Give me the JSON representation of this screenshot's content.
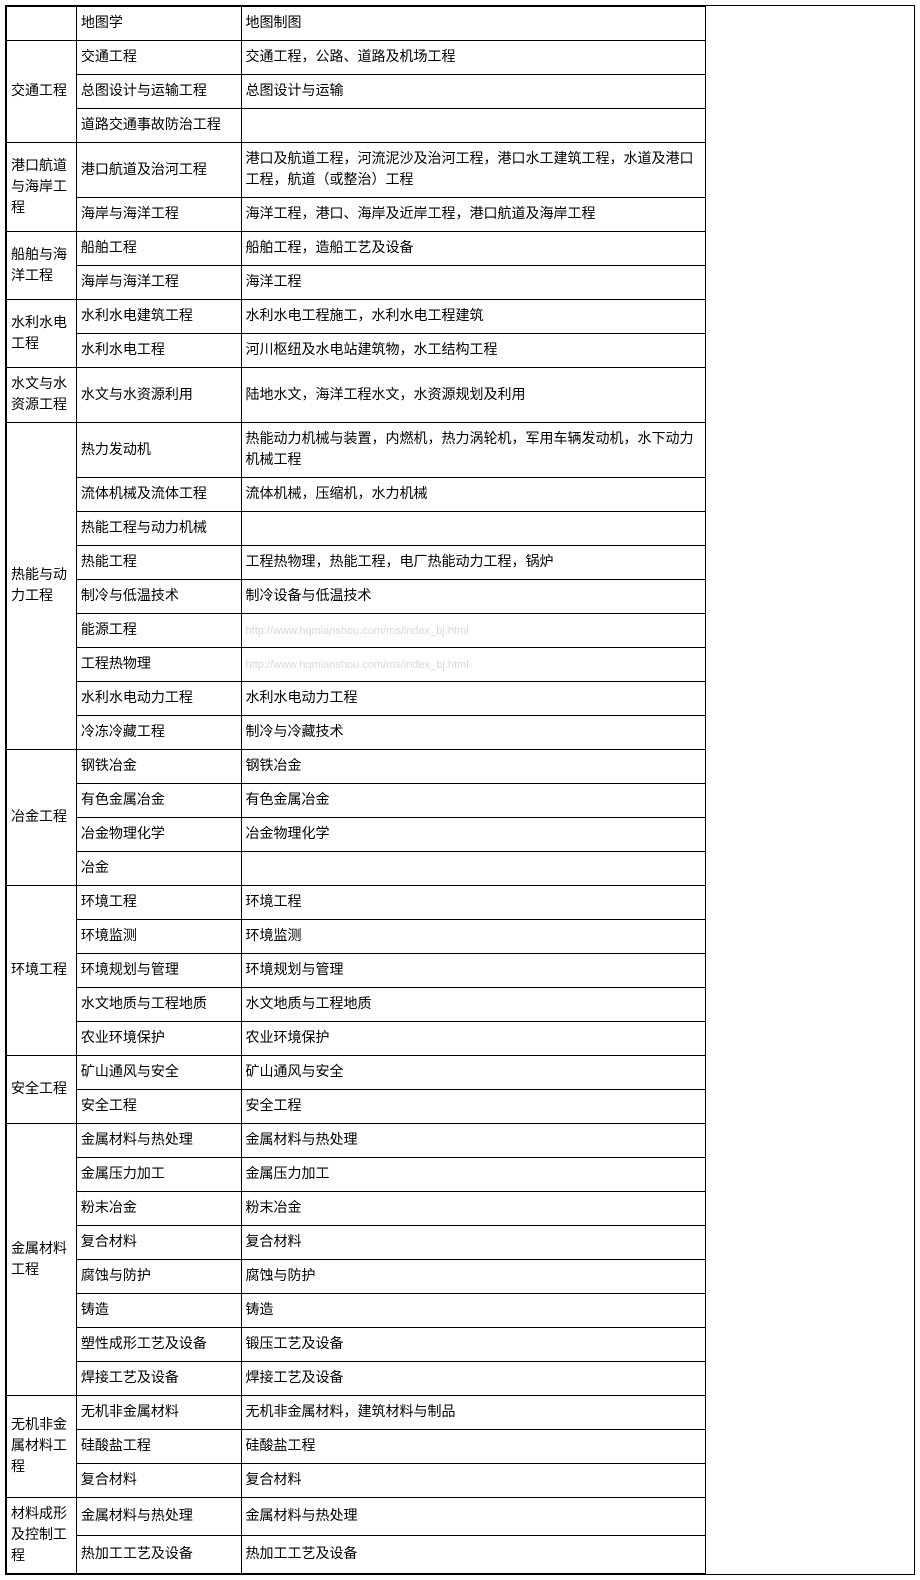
{
  "watermark_text": "http://www.hqmianshou.com/ms/index_bj.html",
  "rows": [
    {
      "c1": "",
      "c2": "地图学",
      "c3": "地图制图"
    },
    {
      "c1": "交通工程",
      "c1_rowspan": 3,
      "c2": "交通工程",
      "c3": "交通工程，公路、道路及机场工程"
    },
    {
      "c2": "总图设计与运输工程",
      "c3": "总图设计与运输"
    },
    {
      "c2": "道路交通事故防治工程",
      "c3": ""
    },
    {
      "c1": "港口航道与海岸工程",
      "c1_rowspan": 2,
      "c2": "港口航道及治河工程",
      "c3": "港口及航道工程，河流泥沙及治河工程，港口水工建筑工程，水道及港口工程，航道（或整治）工程"
    },
    {
      "c2": "海岸与海洋工程",
      "c3": "海洋工程，港口、海岸及近岸工程，港口航道及海岸工程"
    },
    {
      "c1": "船舶与海洋工程",
      "c1_rowspan": 2,
      "c2": "船舶工程",
      "c3": "船舶工程，造船工艺及设备"
    },
    {
      "c2": "海岸与海洋工程",
      "c3": "海洋工程"
    },
    {
      "c1": "水利水电工程",
      "c1_rowspan": 2,
      "c2": "水利水电建筑工程",
      "c3": "水利水电工程施工，水利水电工程建筑"
    },
    {
      "c2": "水利水电工程",
      "c3": "河川枢纽及水电站建筑物，水工结构工程"
    },
    {
      "c1": "水文与水资源工程",
      "c1_rowspan": 1,
      "c2": "水文与水资源利用",
      "c3": "陆地水文，海洋工程水文，水资源规划及利用"
    },
    {
      "c1": "热能与动力工程",
      "c1_rowspan": 9,
      "c2": "热力发动机",
      "c3": "热能动力机械与装置，内燃机，热力涡轮机，军用车辆发动机，水下动力机械工程"
    },
    {
      "c2": "流体机械及流体工程",
      "c3": "流体机械，压缩机，水力机械"
    },
    {
      "c2": "热能工程与动力机械",
      "c3": ""
    },
    {
      "c2": "热能工程",
      "c3": "工程热物理，热能工程，电厂热能动力工程，锅炉"
    },
    {
      "c2": "制冷与低温技术",
      "c3": "制冷设备与低温技术"
    },
    {
      "c2": "能源工程",
      "c3": "",
      "watermark": true
    },
    {
      "c2": "工程热物理",
      "c3": "",
      "watermark": true
    },
    {
      "c2": "水利水电动力工程",
      "c3": "水利水电动力工程"
    },
    {
      "c2": "冷冻冷藏工程",
      "c3": "制冷与冷藏技术"
    },
    {
      "c1": "冶金工程",
      "c1_rowspan": 4,
      "c2": "钢铁冶金",
      "c3": "钢铁冶金"
    },
    {
      "c2": "有色金属冶金",
      "c3": "有色金属冶金"
    },
    {
      "c2": "冶金物理化学",
      "c3": "冶金物理化学"
    },
    {
      "c2": "冶金",
      "c3": ""
    },
    {
      "c1": "环境工程",
      "c1_rowspan": 5,
      "c2": "环境工程",
      "c3": "环境工程"
    },
    {
      "c2": "环境监测",
      "c3": "环境监测"
    },
    {
      "c2": "环境规划与管理",
      "c3": "环境规划与管理"
    },
    {
      "c2": "水文地质与工程地质",
      "c3": "水文地质与工程地质"
    },
    {
      "c2": "农业环境保护",
      "c3": "农业环境保护"
    },
    {
      "c1": "安全工程",
      "c1_rowspan": 2,
      "c2": "矿山通风与安全",
      "c3": "矿山通风与安全"
    },
    {
      "c2": "安全工程",
      "c3": "安全工程"
    },
    {
      "c1": "金属材料工程",
      "c1_rowspan": 8,
      "c2": "金属材料与热处理",
      "c3": "金属材料与热处理"
    },
    {
      "c2": "金属压力加工",
      "c3": "金属压力加工"
    },
    {
      "c2": "粉末冶金",
      "c3": "粉末冶金"
    },
    {
      "c2": "复合材料",
      "c3": "复合材料"
    },
    {
      "c2": "腐蚀与防护",
      "c3": "腐蚀与防护"
    },
    {
      "c2": "铸造",
      "c3": "铸造"
    },
    {
      "c2": "塑性成形工艺及设备",
      "c3": "锻压工艺及设备"
    },
    {
      "c2": "焊接工艺及设备",
      "c3": "焊接工艺及设备"
    },
    {
      "c1": "无机非金属材料工程",
      "c1_rowspan": 3,
      "c2": "无机非金属材料",
      "c3": "无机非金属材料，建筑材料与制品"
    },
    {
      "c2": "硅酸盐工程",
      "c3": "硅酸盐工程"
    },
    {
      "c2": "复合材料",
      "c3": "复合材料"
    },
    {
      "c1": "材料成形及控制工程",
      "c1_rowspan": 2,
      "c2": "金属材料与热处理",
      "c3": "金属材料与热处理"
    },
    {
      "c2": "热加工工艺及设备",
      "c3": "热加工工艺及设备"
    }
  ]
}
